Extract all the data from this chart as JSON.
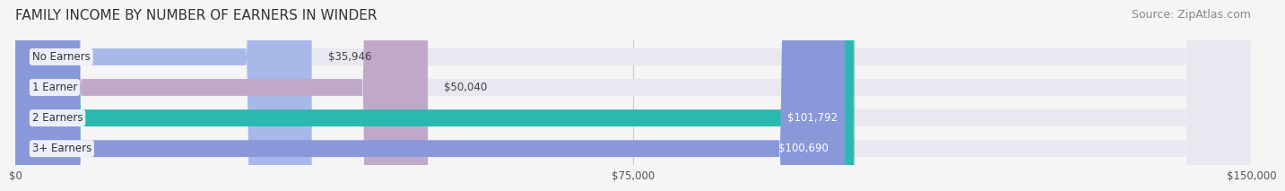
{
  "title": "FAMILY INCOME BY NUMBER OF EARNERS IN WINDER",
  "source": "Source: ZipAtlas.com",
  "categories": [
    "No Earners",
    "1 Earner",
    "2 Earners",
    "3+ Earners"
  ],
  "values": [
    35946,
    50040,
    101792,
    100690
  ],
  "labels": [
    "$35,946",
    "$50,040",
    "$101,792",
    "$100,690"
  ],
  "bar_colors": [
    "#a8b8e8",
    "#c0a8c8",
    "#2ab8b0",
    "#8898d8"
  ],
  "bar_bg_color": "#e8e8f0",
  "label_colors": [
    "#444444",
    "#444444",
    "#ffffff",
    "#ffffff"
  ],
  "xlim": [
    0,
    150000
  ],
  "xticks": [
    0,
    75000,
    150000
  ],
  "xticklabels": [
    "$0",
    "$75,000",
    "$150,000"
  ],
  "title_fontsize": 11,
  "source_fontsize": 9,
  "bar_height": 0.55,
  "fig_bg_color": "#f5f5f5",
  "bar_bg_alpha": 1.0
}
